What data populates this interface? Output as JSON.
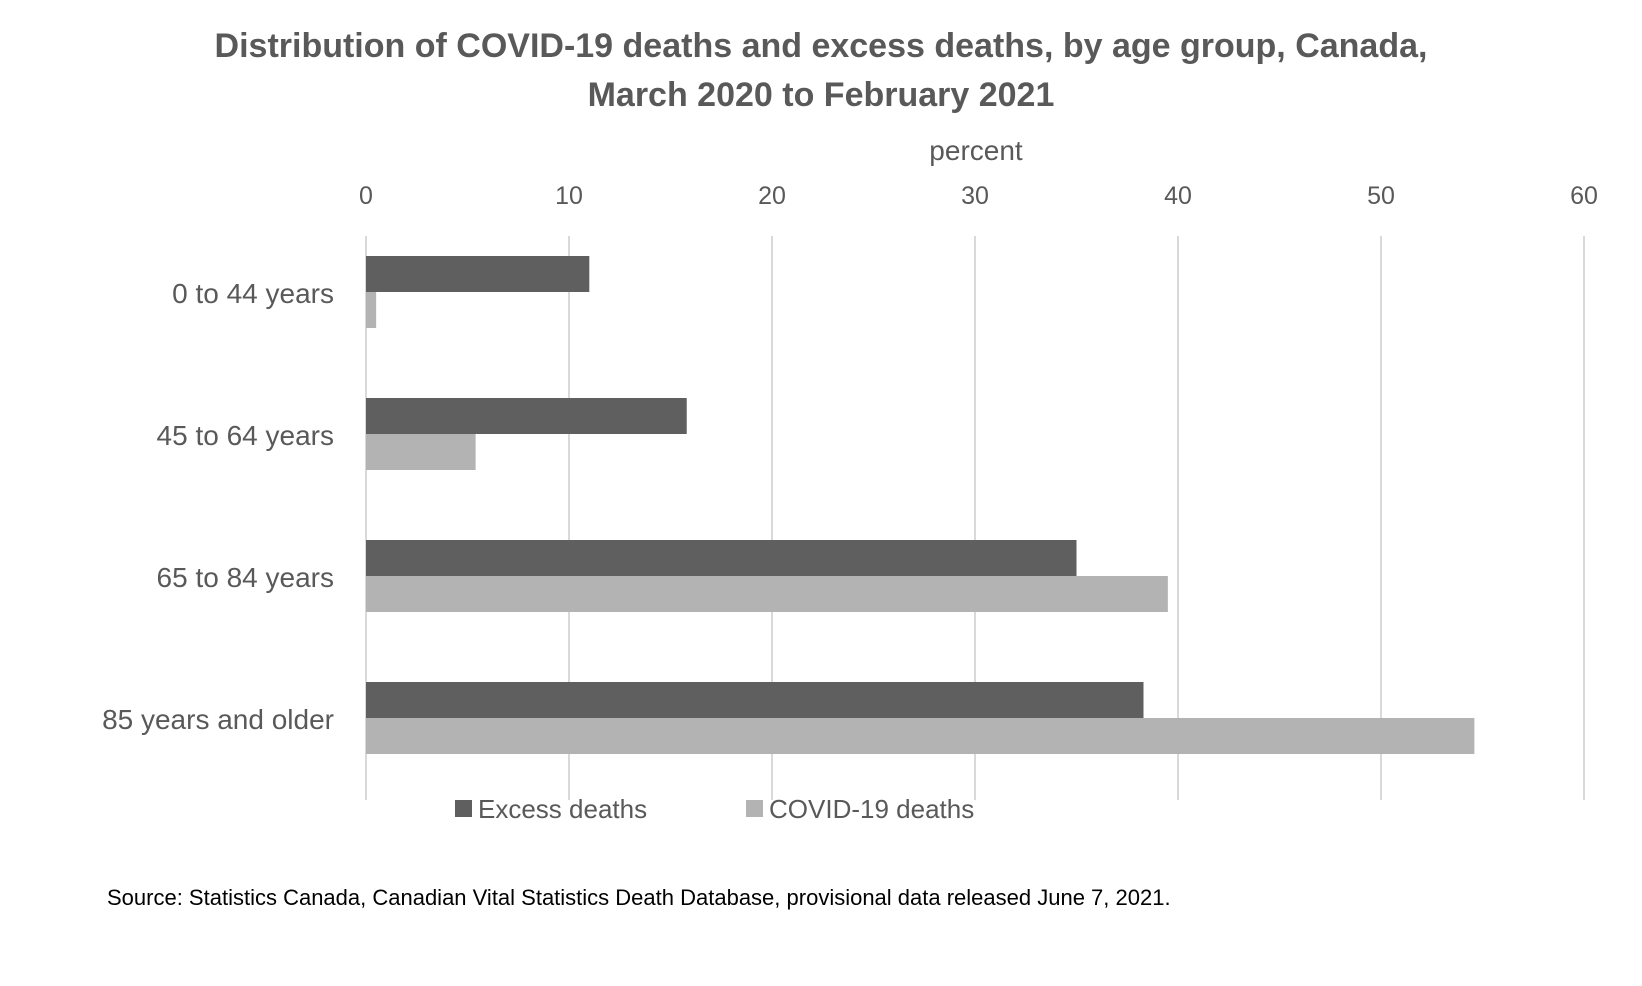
{
  "chart_data": {
    "type": "bar",
    "orientation": "horizontal",
    "title_lines": [
      "Distribution of COVID-19 deaths and excess deaths, by age group, Canada,",
      "March 2020 to February 2021"
    ],
    "xlabel": "percent",
    "ylabel": "",
    "xlim": [
      0,
      60
    ],
    "x_ticks": [
      "0",
      "10",
      "20",
      "30",
      "40",
      "50",
      "60"
    ],
    "categories": [
      "0 to 44 years",
      "45 to 64 years",
      "65 to 84 years",
      "85 years and older"
    ],
    "series": [
      {
        "name": "Excess deaths",
        "values": [
          11.0,
          15.8,
          35.0,
          38.3
        ],
        "color": "#5f5f5f"
      },
      {
        "name": "COVID-19 deaths",
        "values": [
          0.5,
          5.4,
          39.5,
          54.6
        ],
        "color": "#b3b3b3"
      }
    ],
    "grid": true,
    "legend_position": "bottom"
  },
  "source": "Source: Statistics Canada, Canadian Vital Statistics Death Database, provisional data released June 7, 2021."
}
